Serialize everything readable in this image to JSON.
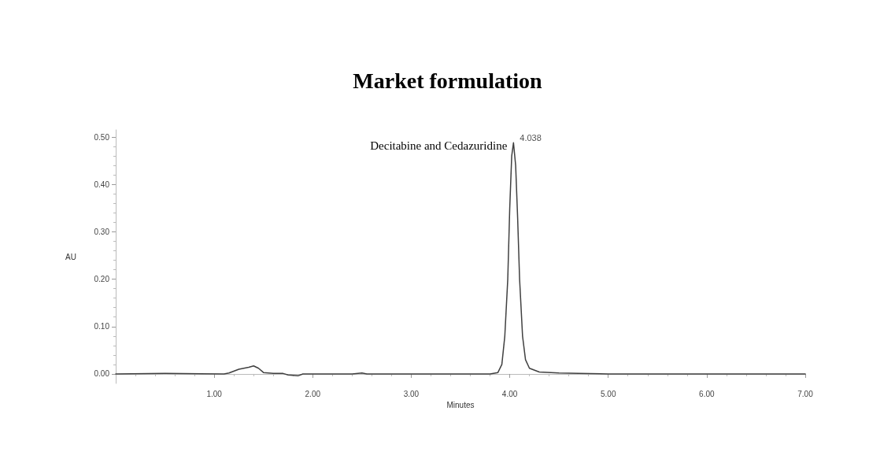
{
  "chart_data": {
    "type": "line",
    "title": "Market formulation",
    "xlabel": "Minutes",
    "ylabel": "AU",
    "annotations": [
      {
        "text": "Decitabine and Cedazuridine",
        "x": 4.038,
        "y": 0.488
      },
      {
        "text": "4.038",
        "x": 4.038,
        "y": 0.488
      }
    ],
    "xlim": [
      0,
      7
    ],
    "ylim": [
      -0.02,
      0.515
    ],
    "xticks": [
      {
        "value": 1,
        "label": "1.00"
      },
      {
        "value": 2,
        "label": "2.00"
      },
      {
        "value": 3,
        "label": "3.00"
      },
      {
        "value": 4,
        "label": "4.00"
      },
      {
        "value": 5,
        "label": "5.00"
      },
      {
        "value": 6,
        "label": "6.00"
      },
      {
        "value": 7,
        "label": "7.00"
      }
    ],
    "yticks": [
      {
        "value": 0,
        "label": "0.00"
      },
      {
        "value": 0.1,
        "label": "0.10"
      },
      {
        "value": 0.2,
        "label": "0.20"
      },
      {
        "value": 0.3,
        "label": "0.30"
      },
      {
        "value": 0.4,
        "label": "0.40"
      },
      {
        "value": 0.5,
        "label": "0.50"
      }
    ],
    "grid": false,
    "marker": "none",
    "line_style": "solid",
    "series": [
      {
        "color": "#404040",
        "x": [
          0,
          0.5,
          1.1,
          1.15,
          1.25,
          1.35,
          1.4,
          1.45,
          1.5,
          1.6,
          1.7,
          1.75,
          1.85,
          1.9,
          2.4,
          2.5,
          2.55,
          3.8,
          3.88,
          3.92,
          3.95,
          3.98,
          4.0,
          4.02,
          4.038,
          4.06,
          4.08,
          4.1,
          4.13,
          4.16,
          4.2,
          4.3,
          4.5,
          4.7,
          5,
          7
        ],
        "values": [
          0,
          0.001,
          0,
          0.002,
          0.01,
          0.014,
          0.017,
          0.012,
          0.003,
          0.001,
          0.001,
          -0.002,
          -0.004,
          0,
          0,
          0.002,
          0,
          0,
          0.003,
          0.02,
          0.08,
          0.2,
          0.35,
          0.46,
          0.488,
          0.44,
          0.33,
          0.2,
          0.08,
          0.03,
          0.012,
          0.004,
          0.002,
          0.001,
          0,
          0
        ]
      }
    ]
  }
}
